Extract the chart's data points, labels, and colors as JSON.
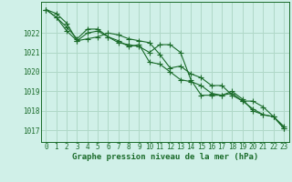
{
  "title": "Graphe pression niveau de la mer (hPa)",
  "bg_color": "#d0f0e8",
  "grid_color": "#b0d8c8",
  "line_color": "#1a6b2a",
  "xlim": [
    -0.5,
    23.5
  ],
  "ylim": [
    1016.4,
    1023.6
  ],
  "yticks": [
    1017,
    1018,
    1019,
    1020,
    1021,
    1022
  ],
  "xticks": [
    0,
    1,
    2,
    3,
    4,
    5,
    6,
    7,
    8,
    9,
    10,
    11,
    12,
    13,
    14,
    15,
    16,
    17,
    18,
    19,
    20,
    21,
    22,
    23
  ],
  "series": [
    [
      1023.2,
      1022.8,
      1022.3,
      1021.7,
      1022.2,
      1022.2,
      1021.8,
      1021.5,
      1021.4,
      1021.3,
      1021.0,
      1021.4,
      1021.4,
      1021.0,
      1019.6,
      1018.8,
      1018.8,
      1018.8,
      1019.0,
      1018.6,
      1018.0,
      1017.8,
      1017.7,
      1017.1
    ],
    [
      1023.2,
      1022.8,
      1022.1,
      1021.6,
      1022.0,
      1022.1,
      1021.8,
      1021.6,
      1021.3,
      1021.4,
      1020.5,
      1020.4,
      1020.0,
      1019.6,
      1019.5,
      1019.3,
      1018.9,
      1018.8,
      1018.9,
      1018.5,
      1018.1,
      1017.8,
      1017.7,
      1017.1
    ],
    [
      1023.2,
      1023.0,
      1022.5,
      1021.6,
      1021.7,
      1021.8,
      1022.0,
      1021.9,
      1021.7,
      1021.6,
      1021.5,
      1020.9,
      1020.2,
      1020.3,
      1019.9,
      1019.7,
      1019.3,
      1019.3,
      1018.8,
      1018.5,
      1018.5,
      1018.2,
      1017.7,
      1017.2
    ]
  ],
  "title_fontsize": 6.5,
  "tick_fontsize": 5.5
}
